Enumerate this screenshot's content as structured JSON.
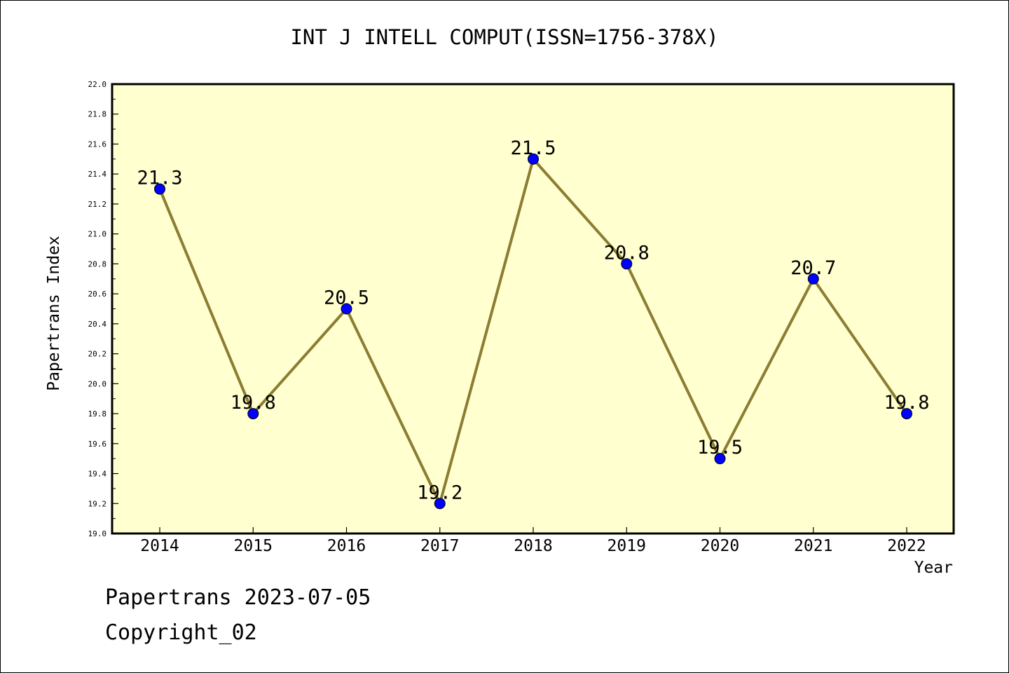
{
  "chart_data": {
    "type": "line",
    "title": "INT J INTELL COMPUT(ISSN=1756-378X)",
    "xlabel": "Year",
    "ylabel": "Papertrans Index",
    "categories": [
      "2014",
      "2015",
      "2016",
      "2017",
      "2018",
      "2019",
      "2020",
      "2021",
      "2022"
    ],
    "series": [
      {
        "values": [
          21.3,
          19.8,
          20.5,
          19.2,
          21.5,
          20.8,
          19.5,
          20.7,
          19.8
        ]
      }
    ],
    "data_labels": [
      "21.3",
      "19.8",
      "20.5",
      "19.2",
      "21.5",
      "20.8",
      "19.5",
      "20.7",
      "19.8"
    ],
    "ylim": [
      19.0,
      22.0
    ],
    "yticks": [
      "19.0",
      "19.2",
      "19.4",
      "19.6",
      "19.8",
      "20.0",
      "20.2",
      "20.4",
      "20.6",
      "20.8",
      "21.0",
      "21.2",
      "21.4",
      "21.6",
      "21.8",
      "22.0"
    ],
    "grid": false,
    "plot_background": "#ffffd0",
    "line_color": "#8b7d32",
    "marker_color": "#0000ff"
  },
  "footer": {
    "date_line": "Papertrans 2023-07-05",
    "copyright": "Copyright_02"
  }
}
